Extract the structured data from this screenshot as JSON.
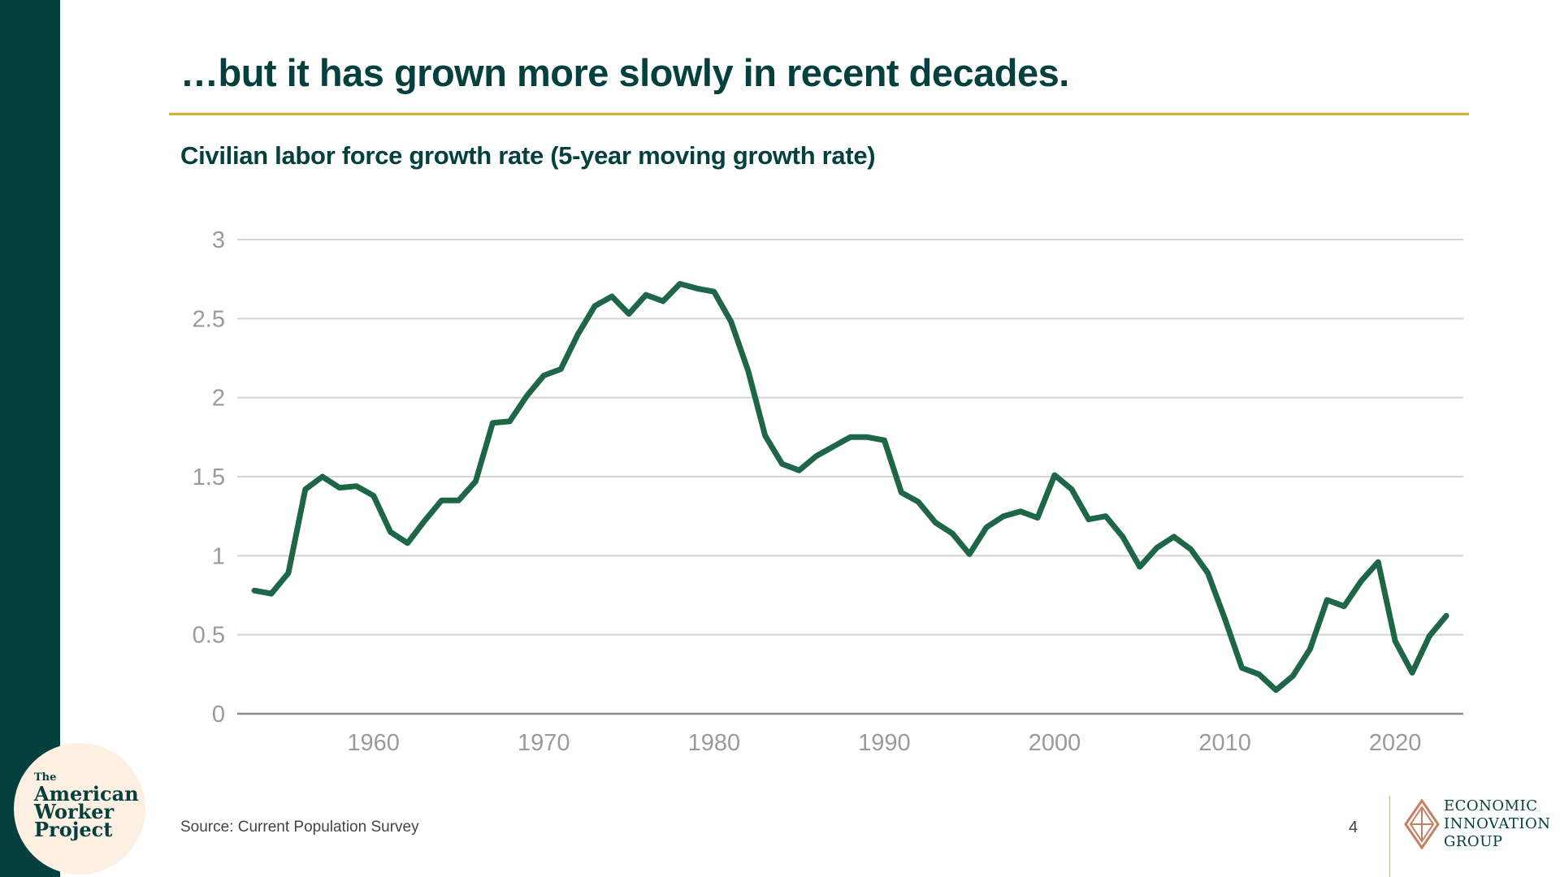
{
  "slide": {
    "title": "…but it has grown more slowly in recent decades.",
    "subtitle": "Civilian labor force growth rate (5-year moving growth rate)",
    "source": "Source: Current Population Survey",
    "page_number": "4"
  },
  "branding": {
    "badge_the": "The",
    "badge_line1": "American",
    "badge_line2": "Worker",
    "badge_line3": "Project",
    "logo_line1": "ECONOMIC",
    "logo_line2": "INNOVATION",
    "logo_line3": "GROUP"
  },
  "colors": {
    "primary": "#04403d",
    "accent": "#d8ae34",
    "line": "#1d6648",
    "grid": "#d4d4d4",
    "axis_text": "#9a9a9a"
  },
  "chart_data": {
    "type": "line",
    "title": "Civilian labor force growth rate (5-year moving growth rate)",
    "xlabel": "",
    "ylabel": "",
    "xlim": [
      1952,
      2024
    ],
    "ylim": [
      0,
      3
    ],
    "x_ticks": [
      1960,
      1970,
      1980,
      1990,
      2000,
      2010,
      2020
    ],
    "y_ticks": [
      0,
      0.5,
      1,
      1.5,
      2,
      2.5,
      3
    ],
    "y_tick_labels": [
      "0",
      "0.5",
      "1",
      "1.5",
      "2",
      "2.5",
      "3"
    ],
    "grid": "horizontal",
    "legend": "none",
    "series": [
      {
        "x": [
          1953,
          1954,
          1955,
          1956,
          1957,
          1958,
          1959,
          1960,
          1961,
          1962,
          1963,
          1964,
          1965,
          1966,
          1967,
          1968,
          1969,
          1970,
          1971,
          1972,
          1973,
          1974,
          1975,
          1976,
          1977,
          1978,
          1979,
          1980,
          1981,
          1982,
          1983,
          1984,
          1985,
          1986,
          1987,
          1988,
          1989,
          1990,
          1991,
          1992,
          1993,
          1994,
          1995,
          1996,
          1997,
          1998,
          1999,
          2000,
          2001,
          2002,
          2003,
          2004,
          2005,
          2006,
          2007,
          2008,
          2009,
          2010,
          2011,
          2012,
          2013,
          2014,
          2015,
          2016,
          2017,
          2018,
          2019,
          2020,
          2021,
          2022,
          2023
        ],
        "values": [
          0.78,
          0.76,
          0.89,
          1.42,
          1.5,
          1.43,
          1.44,
          1.38,
          1.15,
          1.08,
          1.22,
          1.35,
          1.35,
          1.47,
          1.84,
          1.85,
          2.01,
          2.14,
          2.18,
          2.4,
          2.58,
          2.64,
          2.53,
          2.65,
          2.61,
          2.72,
          2.69,
          2.67,
          2.48,
          2.17,
          1.76,
          1.58,
          1.54,
          1.63,
          1.69,
          1.75,
          1.75,
          1.73,
          1.4,
          1.34,
          1.21,
          1.14,
          1.01,
          1.18,
          1.25,
          1.28,
          1.24,
          1.51,
          1.42,
          1.23,
          1.25,
          1.12,
          0.93,
          1.05,
          1.12,
          1.04,
          0.89,
          0.6,
          0.29,
          0.25,
          0.15,
          0.24,
          0.41,
          0.72,
          0.68,
          0.84,
          0.96,
          0.46,
          0.26,
          0.49,
          0.62
        ]
      }
    ]
  }
}
